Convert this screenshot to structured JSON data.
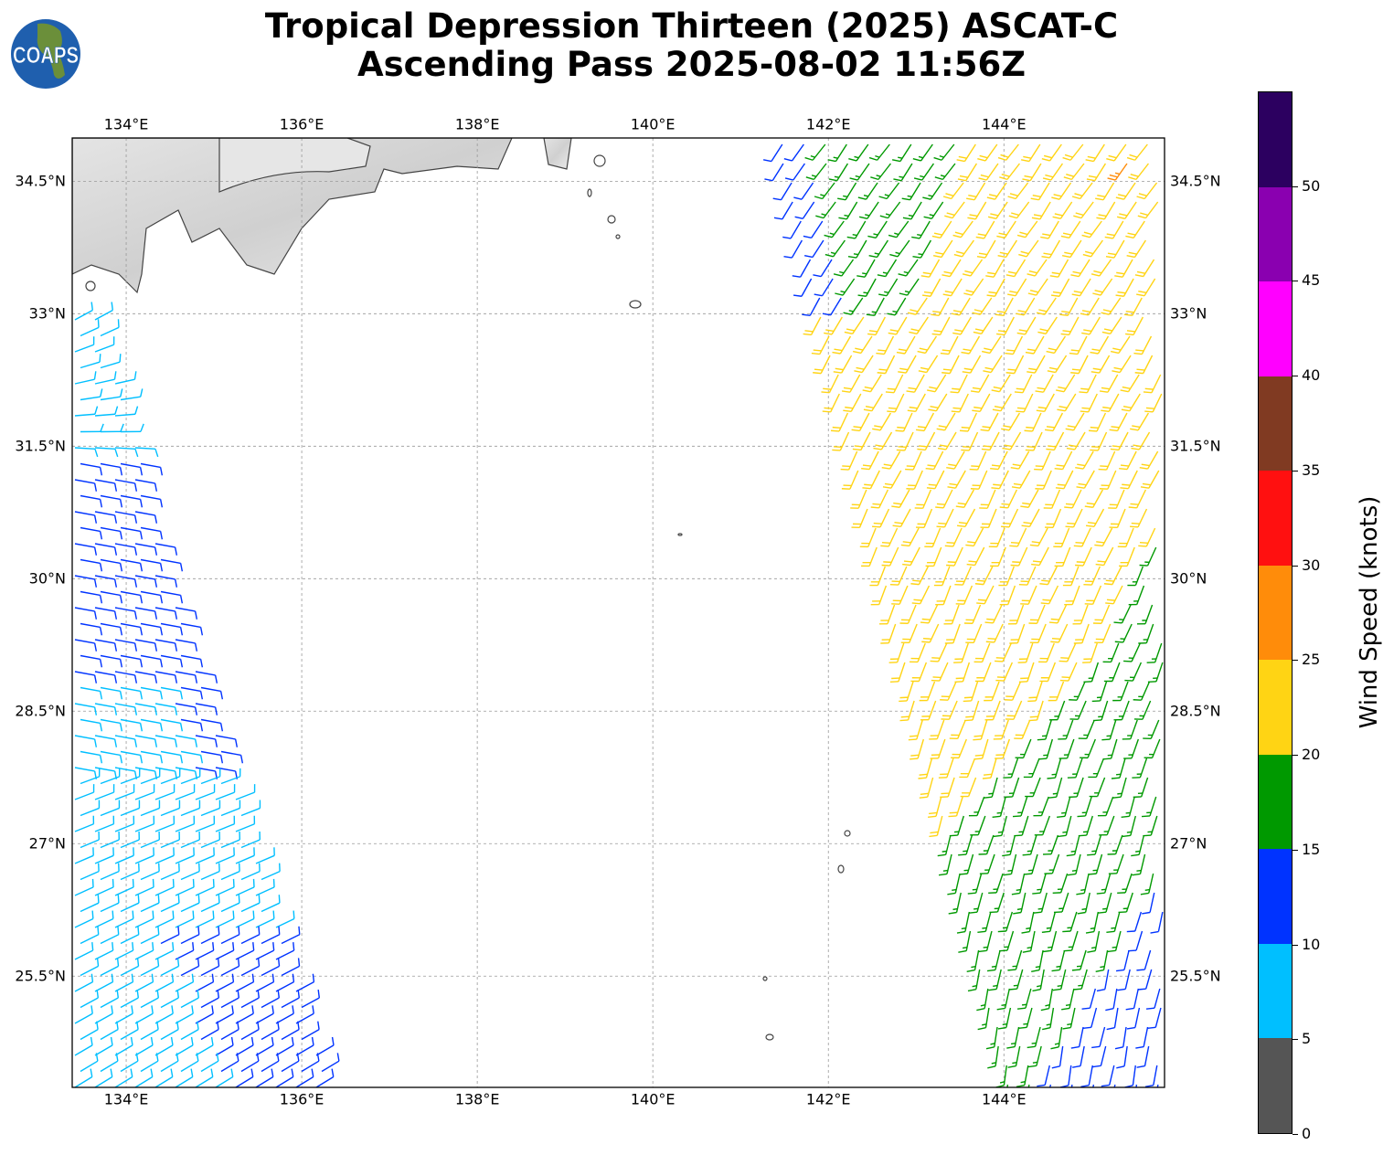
{
  "title": {
    "line1": "Tropical Depression Thirteen (2025) ASCAT-C",
    "line2": "Ascending Pass 2025-08-02 11:56Z"
  },
  "logo": {
    "text": "COAPS"
  },
  "map": {
    "lon_range": [
      133.385,
      145.83
    ],
    "lat_range": [
      24.24,
      34.99
    ],
    "lon_ticks": [
      134,
      136,
      138,
      140,
      142,
      144
    ],
    "lon_labels": [
      "134°E",
      "136°E",
      "138°E",
      "140°E",
      "142°E",
      "144°E"
    ],
    "lat_ticks": [
      34.5,
      33,
      31.5,
      30,
      28.5,
      27,
      25.5
    ],
    "lat_labels": [
      "34.5°N",
      "33°N",
      "31.5°N",
      "30°N",
      "28.5°N",
      "27°N",
      "25.5°N"
    ]
  },
  "colorbar": {
    "label": "Wind Speed (knots)",
    "ticks": [
      "0",
      "5",
      "10",
      "15",
      "20",
      "25",
      "30",
      "35",
      "40",
      "45",
      "50"
    ],
    "colors": [
      "#555555",
      "#00bfff",
      "#0033ff",
      "#009900",
      "#ffd414",
      "#ff8c0a",
      "#ff1010",
      "#803a22",
      "#ff00ff",
      "#8a00b0",
      "#2c0060"
    ]
  }
}
